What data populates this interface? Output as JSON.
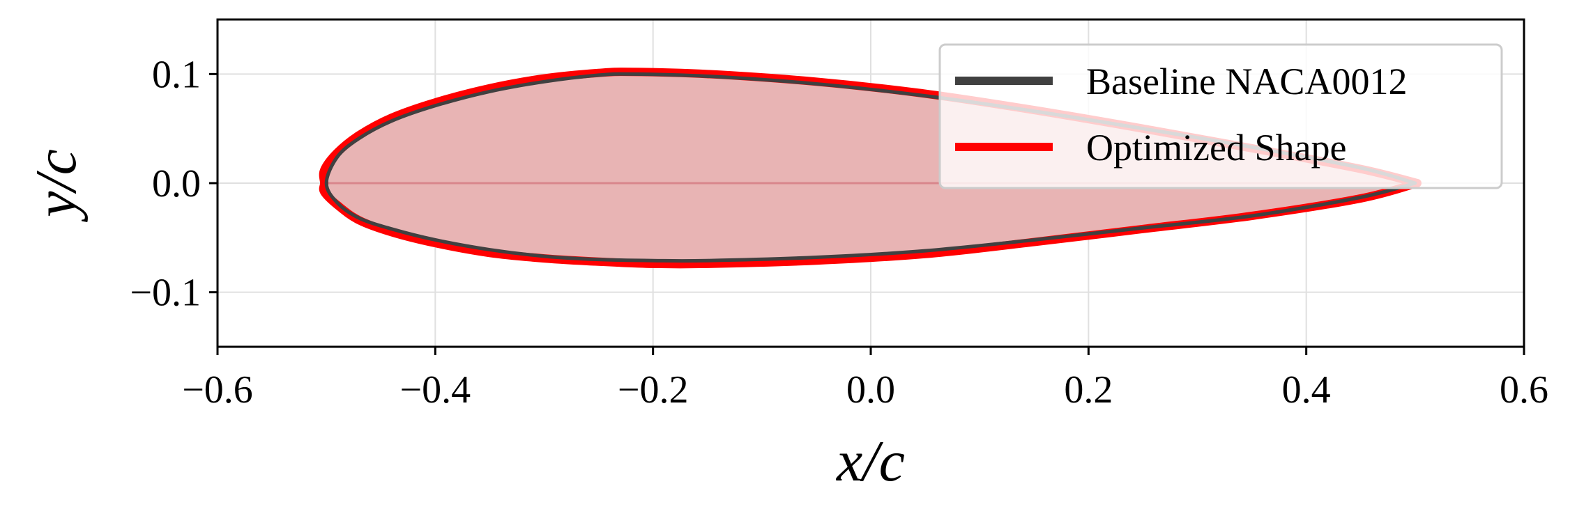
{
  "chart_data": {
    "type": "line",
    "xlabel": "x/c",
    "ylabel": "y/c",
    "xlim": [
      -0.6,
      0.6
    ],
    "ylim": [
      -0.15,
      0.15
    ],
    "xticks": [
      -0.6,
      -0.4,
      -0.2,
      0.0,
      0.2,
      0.4,
      0.6
    ],
    "xtick_labels": [
      "−0.6",
      "−0.4",
      "−0.2",
      "0.0",
      "0.2",
      "0.4",
      "0.6"
    ],
    "yticks": [
      0.1,
      0.0,
      -0.1
    ],
    "ytick_labels": [
      "0.1",
      "0.0",
      "−0.1"
    ],
    "grid": true,
    "legend_position": "top-right",
    "series": [
      {
        "name": "Baseline NACA0012",
        "color": "#404040",
        "upper": [
          [
            -0.5,
            0.0
          ],
          [
            -0.49,
            0.024
          ],
          [
            -0.47,
            0.041
          ],
          [
            -0.44,
            0.057
          ],
          [
            -0.4,
            0.071
          ],
          [
            -0.35,
            0.084
          ],
          [
            -0.3,
            0.093
          ],
          [
            -0.25,
            0.099
          ],
          [
            -0.22,
            0.1
          ],
          [
            -0.15,
            0.098
          ],
          [
            -0.05,
            0.091
          ],
          [
            0.05,
            0.08
          ],
          [
            0.15,
            0.066
          ],
          [
            0.25,
            0.05
          ],
          [
            0.35,
            0.033
          ],
          [
            0.45,
            0.014
          ],
          [
            0.5,
            0.0
          ]
        ],
        "lower": [
          [
            -0.5,
            0.0
          ],
          [
            -0.49,
            -0.018
          ],
          [
            -0.47,
            -0.032
          ],
          [
            -0.44,
            -0.042
          ],
          [
            -0.4,
            -0.052
          ],
          [
            -0.35,
            -0.061
          ],
          [
            -0.3,
            -0.067
          ],
          [
            -0.25,
            -0.07
          ],
          [
            -0.2,
            -0.071
          ],
          [
            -0.15,
            -0.071
          ],
          [
            -0.05,
            -0.068
          ],
          [
            0.05,
            -0.062
          ],
          [
            0.15,
            -0.052
          ],
          [
            0.25,
            -0.041
          ],
          [
            0.35,
            -0.03
          ],
          [
            0.45,
            -0.013
          ],
          [
            0.5,
            0.0
          ]
        ]
      },
      {
        "name": "Optimized Shape",
        "color": "#ff0000",
        "upper": [
          [
            -0.502,
            0.0
          ],
          [
            -0.502,
            0.012
          ],
          [
            -0.49,
            0.028
          ],
          [
            -0.47,
            0.044
          ],
          [
            -0.44,
            0.06
          ],
          [
            -0.4,
            0.074
          ],
          [
            -0.35,
            0.087
          ],
          [
            -0.3,
            0.096
          ],
          [
            -0.25,
            0.101
          ],
          [
            -0.22,
            0.102
          ],
          [
            -0.15,
            0.1
          ],
          [
            -0.05,
            0.093
          ],
          [
            0.05,
            0.082
          ],
          [
            0.15,
            0.067
          ],
          [
            0.25,
            0.05
          ],
          [
            0.35,
            0.032
          ],
          [
            0.45,
            0.013
          ],
          [
            0.502,
            0.0
          ]
        ],
        "lower": [
          [
            -0.502,
            0.0
          ],
          [
            -0.502,
            -0.008
          ],
          [
            -0.49,
            -0.02
          ],
          [
            -0.47,
            -0.034
          ],
          [
            -0.44,
            -0.045
          ],
          [
            -0.4,
            -0.055
          ],
          [
            -0.35,
            -0.064
          ],
          [
            -0.3,
            -0.069
          ],
          [
            -0.25,
            -0.072
          ],
          [
            -0.2,
            -0.074
          ],
          [
            -0.15,
            -0.074
          ],
          [
            -0.05,
            -0.071
          ],
          [
            0.05,
            -0.065
          ],
          [
            0.15,
            -0.054
          ],
          [
            0.25,
            -0.042
          ],
          [
            0.35,
            -0.03
          ],
          [
            0.45,
            -0.014
          ],
          [
            0.502,
            0.0
          ]
        ]
      }
    ],
    "fill_color": "#e8b4b4",
    "camber_line_color": "#d9868c"
  }
}
